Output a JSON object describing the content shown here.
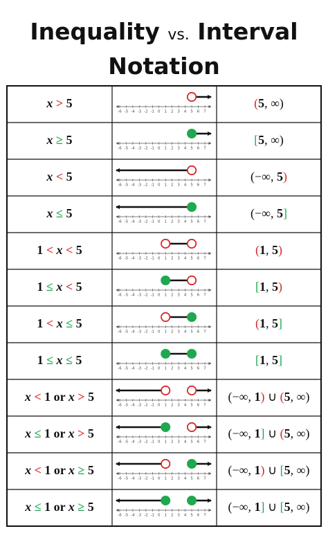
{
  "title": {
    "line1": [
      {
        "text": "Inequality "
      },
      {
        "text": "vs.",
        "small": true
      },
      {
        "text": " Interval"
      }
    ],
    "line2": "Notation"
  },
  "colors": {
    "open": "#d8282b",
    "closed": "#1fa84f"
  },
  "number_line": {
    "ticks": [
      -6,
      -5,
      -4,
      -3,
      -2,
      -1,
      0,
      1,
      2,
      3,
      4,
      5,
      6,
      7
    ]
  },
  "rows": [
    {
      "inequality": [
        {
          "text": "x",
          "italic": true
        },
        {
          "text": " > ",
          "color": "#d8282b"
        },
        {
          "text": "5"
        }
      ],
      "graph": {
        "points": [
          {
            "value": 5,
            "filled": false
          }
        ],
        "shade": "right"
      },
      "interval": [
        {
          "text": "(",
          "color": "#d8282b"
        },
        {
          "text": "5",
          "bold": true
        },
        {
          "text": ", ∞)"
        }
      ]
    },
    {
      "inequality": [
        {
          "text": "x",
          "italic": true
        },
        {
          "text": " ≥ ",
          "color": "#1fa84f"
        },
        {
          "text": "5"
        }
      ],
      "graph": {
        "points": [
          {
            "value": 5,
            "filled": true
          }
        ],
        "shade": "right"
      },
      "interval": [
        {
          "text": "[",
          "color": "#1fa84f"
        },
        {
          "text": "5",
          "bold": true
        },
        {
          "text": ", ∞)"
        }
      ]
    },
    {
      "inequality": [
        {
          "text": "x",
          "italic": true
        },
        {
          "text": " < ",
          "color": "#d8282b"
        },
        {
          "text": "5"
        }
      ],
      "graph": {
        "points": [
          {
            "value": 5,
            "filled": false
          }
        ],
        "shade": "left"
      },
      "interval": [
        {
          "text": "(−∞, "
        },
        {
          "text": "5",
          "bold": true
        },
        {
          "text": ")",
          "color": "#d8282b"
        }
      ]
    },
    {
      "inequality": [
        {
          "text": "x",
          "italic": true
        },
        {
          "text": " ≤ ",
          "color": "#1fa84f"
        },
        {
          "text": "5"
        }
      ],
      "graph": {
        "points": [
          {
            "value": 5,
            "filled": true
          }
        ],
        "shade": "left"
      },
      "interval": [
        {
          "text": "(−∞, "
        },
        {
          "text": "5",
          "bold": true
        },
        {
          "text": "]",
          "color": "#1fa84f"
        }
      ]
    },
    {
      "inequality": [
        {
          "text": "1"
        },
        {
          "text": " < ",
          "color": "#d8282b"
        },
        {
          "text": "x",
          "italic": true
        },
        {
          "text": " < ",
          "color": "#d8282b"
        },
        {
          "text": "5"
        }
      ],
      "graph": {
        "points": [
          {
            "value": 1,
            "filled": false
          },
          {
            "value": 5,
            "filled": false
          }
        ],
        "shade": "between"
      },
      "interval": [
        {
          "text": "(",
          "color": "#d8282b"
        },
        {
          "text": "1",
          "bold": true
        },
        {
          "text": ", "
        },
        {
          "text": "5",
          "bold": true
        },
        {
          "text": ")",
          "color": "#d8282b"
        }
      ]
    },
    {
      "inequality": [
        {
          "text": "1"
        },
        {
          "text": " ≤ ",
          "color": "#1fa84f"
        },
        {
          "text": "x",
          "italic": true
        },
        {
          "text": " < ",
          "color": "#d8282b"
        },
        {
          "text": "5"
        }
      ],
      "graph": {
        "points": [
          {
            "value": 1,
            "filled": true
          },
          {
            "value": 5,
            "filled": false
          }
        ],
        "shade": "between"
      },
      "interval": [
        {
          "text": "[",
          "color": "#1fa84f"
        },
        {
          "text": "1",
          "bold": true
        },
        {
          "text": ", "
        },
        {
          "text": "5",
          "bold": true
        },
        {
          "text": ")",
          "color": "#d8282b"
        }
      ]
    },
    {
      "inequality": [
        {
          "text": "1"
        },
        {
          "text": " < ",
          "color": "#d8282b"
        },
        {
          "text": "x",
          "italic": true
        },
        {
          "text": " ≤ ",
          "color": "#1fa84f"
        },
        {
          "text": "5"
        }
      ],
      "graph": {
        "points": [
          {
            "value": 1,
            "filled": false
          },
          {
            "value": 5,
            "filled": true
          }
        ],
        "shade": "between"
      },
      "interval": [
        {
          "text": "(",
          "color": "#d8282b"
        },
        {
          "text": "1",
          "bold": true
        },
        {
          "text": ", "
        },
        {
          "text": "5",
          "bold": true
        },
        {
          "text": "]",
          "color": "#1fa84f"
        }
      ]
    },
    {
      "inequality": [
        {
          "text": "1"
        },
        {
          "text": " ≤ ",
          "color": "#1fa84f"
        },
        {
          "text": "x",
          "italic": true
        },
        {
          "text": " ≤ ",
          "color": "#1fa84f"
        },
        {
          "text": "5"
        }
      ],
      "graph": {
        "points": [
          {
            "value": 1,
            "filled": true
          },
          {
            "value": 5,
            "filled": true
          }
        ],
        "shade": "between"
      },
      "interval": [
        {
          "text": "[",
          "color": "#1fa84f"
        },
        {
          "text": "1",
          "bold": true
        },
        {
          "text": ", "
        },
        {
          "text": "5",
          "bold": true
        },
        {
          "text": "]",
          "color": "#1fa84f"
        }
      ]
    },
    {
      "inequality": [
        {
          "text": "x",
          "italic": true
        },
        {
          "text": " < ",
          "color": "#d8282b"
        },
        {
          "text": "1 or "
        },
        {
          "text": "x",
          "italic": true
        },
        {
          "text": " > ",
          "color": "#d8282b"
        },
        {
          "text": "5"
        }
      ],
      "graph": {
        "points": [
          {
            "value": 1,
            "filled": false
          },
          {
            "value": 5,
            "filled": false
          }
        ],
        "shade": "outside"
      },
      "interval": [
        {
          "text": "(−∞, "
        },
        {
          "text": "1",
          "bold": true
        },
        {
          "text": ")",
          "color": "#d8282b"
        },
        {
          "text": " ∪ "
        },
        {
          "text": "(",
          "color": "#d8282b"
        },
        {
          "text": "5",
          "bold": true
        },
        {
          "text": ", ∞)"
        }
      ]
    },
    {
      "inequality": [
        {
          "text": "x",
          "italic": true
        },
        {
          "text": " ≤ ",
          "color": "#1fa84f"
        },
        {
          "text": "1 or "
        },
        {
          "text": "x",
          "italic": true
        },
        {
          "text": " > ",
          "color": "#d8282b"
        },
        {
          "text": "5"
        }
      ],
      "graph": {
        "points": [
          {
            "value": 1,
            "filled": true
          },
          {
            "value": 5,
            "filled": false
          }
        ],
        "shade": "outside"
      },
      "interval": [
        {
          "text": "(−∞, "
        },
        {
          "text": "1",
          "bold": true
        },
        {
          "text": "]",
          "color": "#1fa84f"
        },
        {
          "text": " ∪ "
        },
        {
          "text": "(",
          "color": "#d8282b"
        },
        {
          "text": "5",
          "bold": true
        },
        {
          "text": ", ∞)"
        }
      ]
    },
    {
      "inequality": [
        {
          "text": "x",
          "italic": true
        },
        {
          "text": " < ",
          "color": "#d8282b"
        },
        {
          "text": "1 or "
        },
        {
          "text": "x",
          "italic": true
        },
        {
          "text": " ≥ ",
          "color": "#1fa84f"
        },
        {
          "text": "5"
        }
      ],
      "graph": {
        "points": [
          {
            "value": 1,
            "filled": false
          },
          {
            "value": 5,
            "filled": true
          }
        ],
        "shade": "outside"
      },
      "interval": [
        {
          "text": "(−∞, "
        },
        {
          "text": "1",
          "bold": true
        },
        {
          "text": ")",
          "color": "#d8282b"
        },
        {
          "text": " ∪ "
        },
        {
          "text": "[",
          "color": "#1fa84f"
        },
        {
          "text": "5",
          "bold": true
        },
        {
          "text": ", ∞)"
        }
      ]
    },
    {
      "inequality": [
        {
          "text": "x",
          "italic": true
        },
        {
          "text": " ≤ ",
          "color": "#1fa84f"
        },
        {
          "text": "1 or "
        },
        {
          "text": "x",
          "italic": true
        },
        {
          "text": " ≥ ",
          "color": "#1fa84f"
        },
        {
          "text": "5"
        }
      ],
      "graph": {
        "points": [
          {
            "value": 1,
            "filled": true
          },
          {
            "value": 5,
            "filled": true
          }
        ],
        "shade": "outside"
      },
      "interval": [
        {
          "text": "(−∞, "
        },
        {
          "text": "1",
          "bold": true
        },
        {
          "text": "]",
          "color": "#1fa84f"
        },
        {
          "text": " ∪ "
        },
        {
          "text": "[",
          "color": "#1fa84f"
        },
        {
          "text": "5",
          "bold": true
        },
        {
          "text": ", ∞)"
        }
      ]
    }
  ]
}
